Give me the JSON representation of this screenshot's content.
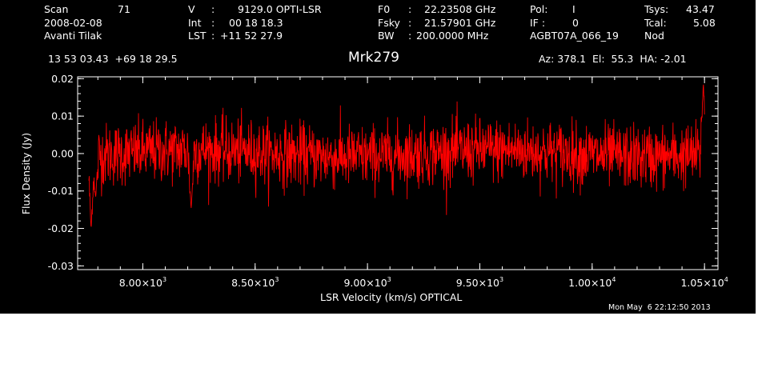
{
  "header": {
    "col1": {
      "scan_label": "Scan",
      "scan_value": "71",
      "date": "2008-02-08",
      "observer": "Avanti Tilak"
    },
    "col2": {
      "v_label": "V",
      "v_sep": ":",
      "v_value": "9129.0 OPTI-LSR",
      "int_label": "Int",
      "int_sep": ":",
      "int_value": "00 18 18.3",
      "lst_label": "LST",
      "lst_sep": ":",
      "lst_value": "+11 52 27.9"
    },
    "col3": {
      "f0_label": "F0",
      "f0_sep": ":",
      "f0_value": "22.23508 GHz",
      "fsky_label": "Fsky",
      "fsky_sep": ":",
      "fsky_value": "21.57901 GHz",
      "bw_label": "BW",
      "bw_sep": ":",
      "bw_value": "200.0000 MHz"
    },
    "col4": {
      "pol_label": "Pol:",
      "pol_value": "I",
      "if_label": "IF :",
      "if_value": "0",
      "project": "AGBT07A_066_19"
    },
    "col5": {
      "tsys_label": "Tsys:",
      "tsys_value": "43.47",
      "tcal_label": "Tcal:",
      "tcal_value": "5.08",
      "mode": "Nod"
    },
    "coords": "13 53 03.43  +69 18 29.5",
    "source": "Mrk279",
    "pointing": "Az: 378.1  El:  55.3  HA: -2.01"
  },
  "footer": {
    "timestamp": "Mon May  6 22:12:50 2013"
  },
  "colors": {
    "background": "#000000",
    "axes": "#ffffff",
    "series": "#ff0000"
  },
  "chart_data": {
    "type": "line",
    "title": "Mrk279",
    "xlabel": "LSR Velocity (km/s) OPTICAL",
    "ylabel": "Flux Density (Jy)",
    "xlim": [
      7710,
      10560
    ],
    "ylim": [
      -0.031,
      0.0205
    ],
    "x_ticks": [
      {
        "value": 8000,
        "mantissa": "8.00",
        "exponent": "3"
      },
      {
        "value": 8500,
        "mantissa": "8.50",
        "exponent": "3"
      },
      {
        "value": 9000,
        "mantissa": "9.00",
        "exponent": "3"
      },
      {
        "value": 9500,
        "mantissa": "9.50",
        "exponent": "3"
      },
      {
        "value": 10000,
        "mantissa": "1.00",
        "exponent": "4"
      },
      {
        "value": 10500,
        "mantissa": "1.05",
        "exponent": "4"
      }
    ],
    "x_tick_times": "×10",
    "y_ticks": [
      {
        "value": 0.02,
        "label": "0.02"
      },
      {
        "value": 0.01,
        "label": "0.01"
      },
      {
        "value": 0.0,
        "label": "0.00"
      },
      {
        "value": -0.01,
        "label": "-0.01"
      },
      {
        "value": -0.02,
        "label": "-0.02"
      },
      {
        "value": -0.03,
        "label": "-0.03"
      }
    ],
    "grid": false,
    "series": [
      {
        "x_start": 7760,
        "x_end": 10500,
        "n_points": 1800,
        "baseline": 0.0,
        "noise_sigma": 0.0042,
        "features": [
          {
            "x": 7770,
            "y": -0.0205
          },
          {
            "x": 7790,
            "y": -0.012
          },
          {
            "x": 8215,
            "y": -0.015
          },
          {
            "x": 10495,
            "y": 0.019
          }
        ]
      }
    ]
  }
}
